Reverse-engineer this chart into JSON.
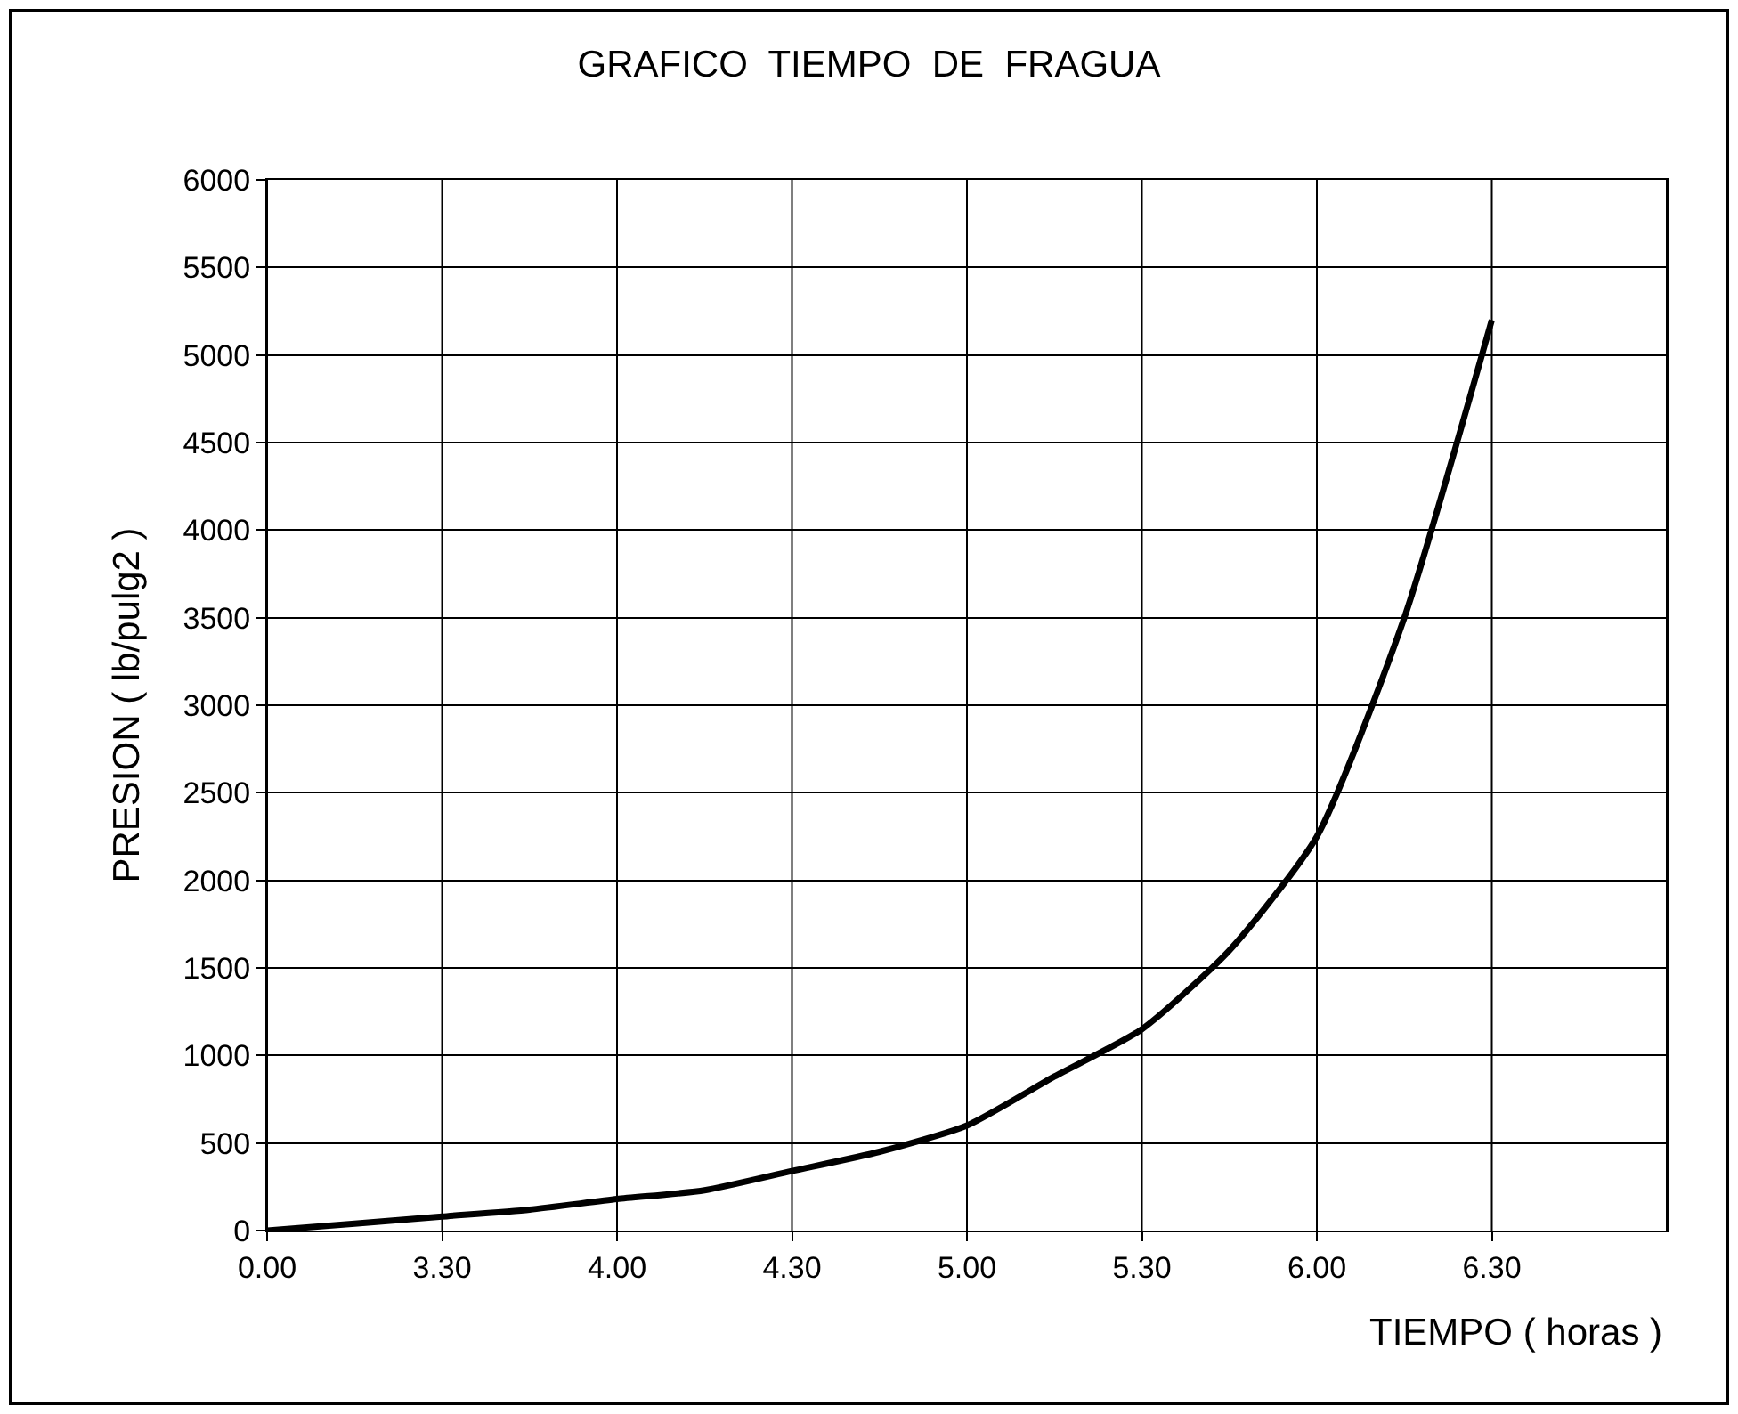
{
  "chart_data": {
    "type": "line",
    "title": "GRAFICO  TIEMPO  DE  FRAGUA",
    "xlabel": "TIEMPO ( horas )",
    "ylabel": "PRESION ( lb/pulg2 )",
    "categories": [
      "0.00",
      null,
      "3.30",
      null,
      "4.00",
      null,
      "4.30",
      null,
      "5.00",
      null,
      "5.30",
      null,
      "6.00",
      null,
      "6.30",
      null,
      null
    ],
    "series": [
      {
        "color": "#000000",
        "values": [
          0,
          40,
          80,
          120,
          180,
          230,
          340,
          450,
          600,
          880,
          1150,
          1600,
          2250,
          3500,
          5200,
          null,
          null
        ]
      }
    ],
    "ylim": [
      0,
      6000
    ],
    "yticks": [
      0,
      500,
      1000,
      1500,
      2000,
      2500,
      3000,
      3500,
      4000,
      4500,
      5000,
      5500,
      6000
    ],
    "grid": true,
    "marker": "none",
    "line_style": "solid"
  }
}
